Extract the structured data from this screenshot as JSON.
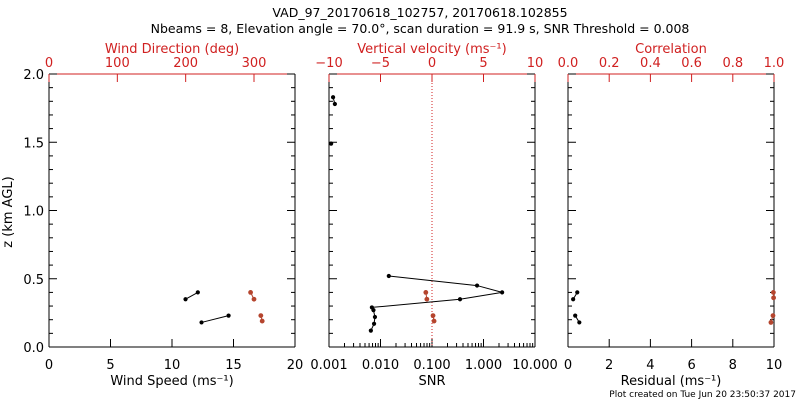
{
  "header": {
    "title_line1": "VAD_97_20170618_102757, 20170618.102855",
    "title_line2": "Nbeams = 8, Elevation angle = 70.0°, scan duration = 91.9 s, SNR Threshold = 0.008"
  },
  "footer": {
    "created_text": "Plot created on Tue Jun 20 23:50:37 2017"
  },
  "colors": {
    "primary": "#000000",
    "secondary": "#d02020",
    "secondary_points": "#b5452e"
  },
  "chart_data": [
    {
      "type": "scatter",
      "panel": "left",
      "title": "",
      "xlabel": "Wind Speed (ms⁻¹)",
      "ylabel": "z (km AGL)",
      "xlim": [
        0,
        20
      ],
      "ylim": [
        0,
        2.0
      ],
      "xticks": [
        "0",
        "5",
        "10",
        "15",
        "20"
      ],
      "yticks": [
        "0.0",
        "0.5",
        "1.0",
        "1.5",
        "2.0"
      ],
      "top_axis": {
        "label": "Wind Direction (deg)",
        "lim": [
          0,
          360
        ],
        "ticks": [
          "0",
          "100",
          "200",
          "300"
        ]
      },
      "series": [
        {
          "name": "Wind Speed",
          "axis": "bottom",
          "points": [
            [
              12.4,
              0.18
            ],
            [
              14.6,
              0.23
            ],
            [
              11.1,
              0.35
            ],
            [
              12.1,
              0.4
            ]
          ],
          "segments": [
            [
              0,
              1
            ],
            [
              2,
              3
            ]
          ]
        },
        {
          "name": "Wind Direction",
          "axis": "top",
          "points": [
            [
              312,
              0.19
            ],
            [
              310,
              0.23
            ],
            [
              300,
              0.35
            ],
            [
              295,
              0.4
            ]
          ],
          "segments": [
            [
              0,
              1
            ],
            [
              2,
              3
            ]
          ]
        }
      ]
    },
    {
      "type": "line",
      "panel": "middle",
      "xlabel": "SNR",
      "xscale": "log",
      "xlim": [
        0.001,
        10
      ],
      "ylim": [
        0,
        2.0
      ],
      "xticks": [
        "0.001",
        "0.010",
        "0.100",
        "1.000",
        "10.000"
      ],
      "top_axis": {
        "label": "Vertical velocity (ms⁻¹)",
        "lim": [
          -10,
          10
        ],
        "ticks": [
          "−10",
          "−5",
          "0",
          "5",
          "10"
        ],
        "zero_line": 0
      },
      "series": [
        {
          "name": "SNR",
          "axis": "bottom",
          "points": [
            [
              0.0065,
              0.12
            ],
            [
              0.0075,
              0.17
            ],
            [
              0.0078,
              0.22
            ],
            [
              0.0073,
              0.27
            ],
            [
              0.0068,
              0.29
            ],
            [
              0.35,
              0.35
            ],
            [
              2.3,
              0.4
            ],
            [
              0.75,
              0.45
            ],
            [
              0.0145,
              0.52
            ],
            [
              0.0011,
              1.49
            ],
            [
              0.0013,
              1.78
            ],
            [
              0.0012,
              1.83
            ]
          ],
          "segments": [
            [
              0,
              1
            ],
            [
              1,
              2
            ],
            [
              2,
              3
            ],
            [
              3,
              4
            ],
            [
              4,
              5
            ],
            [
              5,
              6
            ],
            [
              6,
              7
            ],
            [
              7,
              8
            ],
            [
              10,
              11
            ]
          ]
        },
        {
          "name": "Vertical velocity",
          "axis": "top",
          "points": [
            [
              0.2,
              0.19
            ],
            [
              0.1,
              0.23
            ],
            [
              -0.5,
              0.35
            ],
            [
              -0.6,
              0.4
            ]
          ],
          "segments": [
            [
              0,
              1
            ],
            [
              2,
              3
            ]
          ]
        }
      ]
    },
    {
      "type": "scatter",
      "panel": "right",
      "xlabel": "Residual (ms⁻¹)",
      "xlim": [
        0,
        10
      ],
      "ylim": [
        0,
        2.0
      ],
      "xticks": [
        "0",
        "2",
        "4",
        "6",
        "8",
        "10"
      ],
      "top_axis": {
        "label": "Correlation",
        "lim": [
          0,
          1.0
        ],
        "ticks": [
          "0.0",
          "0.2",
          "0.4",
          "0.6",
          "0.8",
          "1.0"
        ]
      },
      "series": [
        {
          "name": "Residual",
          "axis": "bottom",
          "points": [
            [
              0.55,
              0.18
            ],
            [
              0.35,
              0.23
            ],
            [
              0.25,
              0.35
            ],
            [
              0.45,
              0.4
            ]
          ],
          "segments": [
            [
              0,
              1
            ],
            [
              2,
              3
            ]
          ]
        },
        {
          "name": "Correlation",
          "axis": "top",
          "points": [
            [
              0.985,
              0.18
            ],
            [
              0.995,
              0.23
            ],
            [
              0.998,
              0.36
            ],
            [
              0.997,
              0.4
            ]
          ],
          "segments": [
            [
              0,
              1
            ],
            [
              2,
              3
            ]
          ]
        }
      ]
    }
  ]
}
